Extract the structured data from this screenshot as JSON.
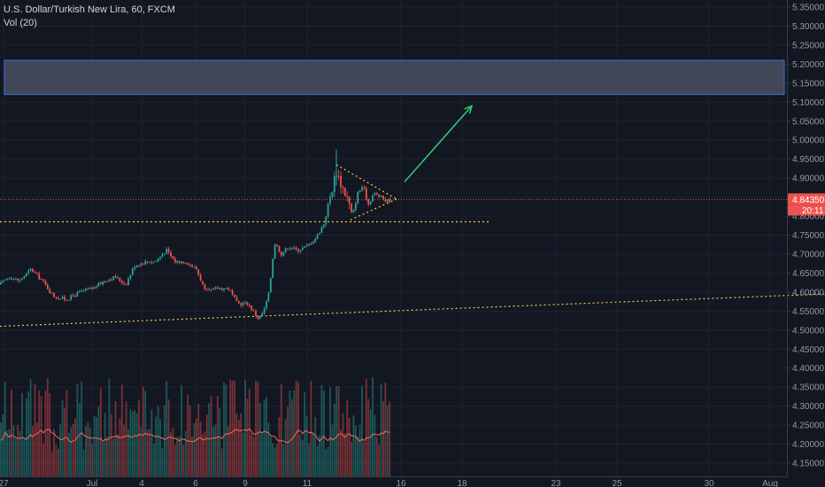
{
  "legend": {
    "title": "U.S. Dollar/Turkish New Lira, 60, FXCM",
    "volume": "Vol (20)"
  },
  "price_tag": {
    "price": "4.84350",
    "countdown": "20:11"
  },
  "colors": {
    "background": "#131722",
    "up": "#26a69a",
    "down": "#ef5350",
    "volume_ma": "#f06a5f",
    "support": "#f2c94c",
    "target_box_fill": "#4a4f63",
    "target_box_border": "#3d6fd8",
    "arrow": "#2ecc71"
  },
  "chart_data": {
    "type": "candlestick",
    "title": "U.S. Dollar/Turkish New Lira, 60, FXCM",
    "y_axis": {
      "ylim": [
        4.125,
        5.375
      ],
      "ticks": [
        "4.15000",
        "4.20000",
        "4.25000",
        "4.30000",
        "4.35000",
        "4.40000",
        "4.45000",
        "4.50000",
        "4.55000",
        "4.60000",
        "4.65000",
        "4.70000",
        "4.75000",
        "4.80000",
        "4.85000",
        "4.90000",
        "4.95000",
        "5.00000",
        "5.05000",
        "5.10000",
        "5.15000",
        "5.20000",
        "5.25000",
        "5.30000",
        "5.35000"
      ]
    },
    "x_axis": {
      "ticks": [
        "27",
        "Jul",
        "4",
        "6",
        "9",
        "11",
        "16",
        "18",
        "23",
        "25",
        "30",
        "Aug"
      ]
    },
    "current_price": 4.8435,
    "price_path": [
      [
        0,
        4.62
      ],
      [
        10,
        4.64
      ],
      [
        22,
        4.63
      ],
      [
        35,
        4.66
      ],
      [
        48,
        4.63
      ],
      [
        60,
        4.59
      ],
      [
        75,
        4.58
      ],
      [
        90,
        4.6
      ],
      [
        105,
        4.61
      ],
      [
        118,
        4.63
      ],
      [
        130,
        4.64
      ],
      [
        142,
        4.62
      ],
      [
        152,
        4.67
      ],
      [
        165,
        4.68
      ],
      [
        175,
        4.68
      ],
      [
        188,
        4.71
      ],
      [
        198,
        4.68
      ],
      [
        210,
        4.68
      ],
      [
        222,
        4.66
      ],
      [
        232,
        4.6
      ],
      [
        245,
        4.61
      ],
      [
        258,
        4.61
      ],
      [
        268,
        4.57
      ],
      [
        280,
        4.57
      ],
      [
        292,
        4.53
      ],
      [
        298,
        4.55
      ],
      [
        304,
        4.6
      ],
      [
        310,
        4.73
      ],
      [
        318,
        4.7
      ],
      [
        326,
        4.72
      ],
      [
        336,
        4.71
      ],
      [
        346,
        4.72
      ],
      [
        356,
        4.74
      ],
      [
        366,
        4.78
      ],
      [
        374,
        4.86
      ],
      [
        380,
        4.92
      ],
      [
        386,
        4.88
      ],
      [
        392,
        4.85
      ],
      [
        398,
        4.8
      ],
      [
        404,
        4.86
      ],
      [
        410,
        4.88
      ],
      [
        416,
        4.83
      ],
      [
        422,
        4.86
      ],
      [
        430,
        4.85
      ],
      [
        436,
        4.84
      ],
      [
        442,
        4.8435
      ]
    ],
    "annotations": {
      "target_zone": [
        5.12,
        5.21
      ],
      "support_horizontal": 4.785,
      "triangle": {
        "apex": [
          448,
          4.845
        ],
        "upper_start": [
          380,
          4.935
        ],
        "lower_start": [
          396,
          4.79
        ]
      },
      "arrow": {
        "from": [
          457,
          4.89
        ],
        "to": [
          533,
          5.09
        ]
      },
      "rising_trendline": [
        [
          0,
          4.51
        ],
        [
          932,
          4.595
        ]
      ]
    },
    "volume_ma": "Vol (20)"
  }
}
